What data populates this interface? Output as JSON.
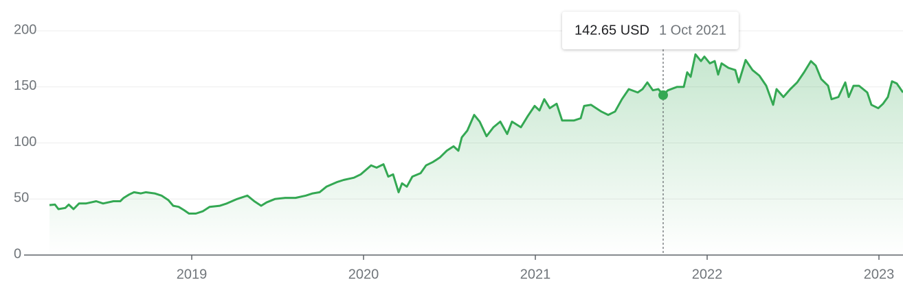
{
  "chart_data": {
    "type": "line",
    "color": "#34a853",
    "grid": true,
    "xlim": [
      2018.044,
      2023.14
    ],
    "xticks": [
      2019,
      2020,
      2021,
      2022,
      2023
    ],
    "ylim": [
      0,
      200
    ],
    "yticks": [
      0,
      50,
      100,
      150,
      200
    ],
    "x": [
      2018.172,
      2018.204,
      2018.224,
      2018.264,
      2018.284,
      2018.312,
      2018.344,
      2018.384,
      2018.444,
      2018.484,
      2018.544,
      2018.584,
      2018.604,
      2018.636,
      2018.664,
      2018.704,
      2018.732,
      2018.784,
      2018.824,
      2018.864,
      2018.892,
      2018.924,
      2018.956,
      2018.984,
      2019.024,
      2019.064,
      2019.104,
      2019.164,
      2019.204,
      2019.264,
      2019.324,
      2019.364,
      2019.404,
      2019.436,
      2019.484,
      2019.544,
      2019.604,
      2019.664,
      2019.704,
      2019.744,
      2019.784,
      2019.844,
      2019.884,
      2019.944,
      2019.984,
      2020.044,
      2020.076,
      2020.116,
      2020.144,
      2020.172,
      2020.204,
      2020.224,
      2020.252,
      2020.284,
      2020.332,
      2020.364,
      2020.404,
      2020.444,
      2020.484,
      2020.524,
      2020.552,
      2020.572,
      2020.604,
      2020.644,
      2020.676,
      2020.716,
      2020.756,
      2020.796,
      2020.836,
      2020.864,
      2020.916,
      2020.956,
      2020.996,
      2021.024,
      2021.052,
      2021.084,
      2021.124,
      2021.156,
      2021.224,
      2021.264,
      2021.284,
      2021.324,
      2021.384,
      2021.424,
      2021.464,
      2021.504,
      2021.544,
      2021.596,
      2021.624,
      2021.652,
      2021.684,
      2021.716,
      2021.744,
      2021.772,
      2021.824,
      2021.864,
      2021.884,
      2021.904,
      2021.932,
      2021.964,
      2021.984,
      2022.016,
      2022.044,
      2022.064,
      2022.084,
      2022.124,
      2022.164,
      2022.184,
      2022.224,
      2022.264,
      2022.304,
      2022.344,
      2022.384,
      2022.404,
      2022.444,
      2022.484,
      2022.524,
      2022.564,
      2022.604,
      2022.632,
      2022.664,
      2022.704,
      2022.724,
      2022.764,
      2022.804,
      2022.824,
      2022.852,
      2022.884,
      2022.932,
      2022.956,
      2022.996,
      2023.024,
      2023.052,
      2023.076,
      2023.104,
      2023.14
    ],
    "values": [
      44.6,
      45,
      41,
      42,
      45,
      41,
      46,
      46,
      48,
      46,
      48,
      48,
      51,
      54,
      56,
      55,
      56,
      55,
      53,
      49,
      44,
      43,
      40,
      37,
      37,
      39,
      43,
      44,
      46,
      50,
      53,
      48,
      44,
      47,
      50,
      51,
      51,
      53,
      55,
      56,
      61,
      65,
      67,
      69,
      72,
      80,
      78,
      81,
      70,
      72,
      56,
      64,
      61,
      70,
      73,
      80,
      83,
      87,
      93,
      97,
      93,
      105,
      111,
      125,
      119,
      106,
      114,
      119,
      108,
      119,
      114,
      124,
      133,
      129,
      139,
      131,
      135,
      120,
      120,
      122,
      133,
      134,
      128,
      125,
      128,
      139,
      148,
      145,
      148,
      154,
      147,
      148,
      143,
      147,
      150,
      150,
      163,
      159,
      179,
      173,
      177,
      171,
      173,
      161,
      171,
      167,
      165,
      154,
      174,
      165,
      160,
      151,
      134,
      148,
      141,
      148,
      154,
      163,
      173,
      169,
      157,
      151,
      139,
      141,
      154,
      141,
      151,
      151,
      145,
      134,
      131,
      135,
      141,
      155,
      153,
      145
    ],
    "tooltip": {
      "x": 2021.744,
      "value": 142.65,
      "value_label": "142.65 USD",
      "date": "1 Oct 2021"
    }
  }
}
